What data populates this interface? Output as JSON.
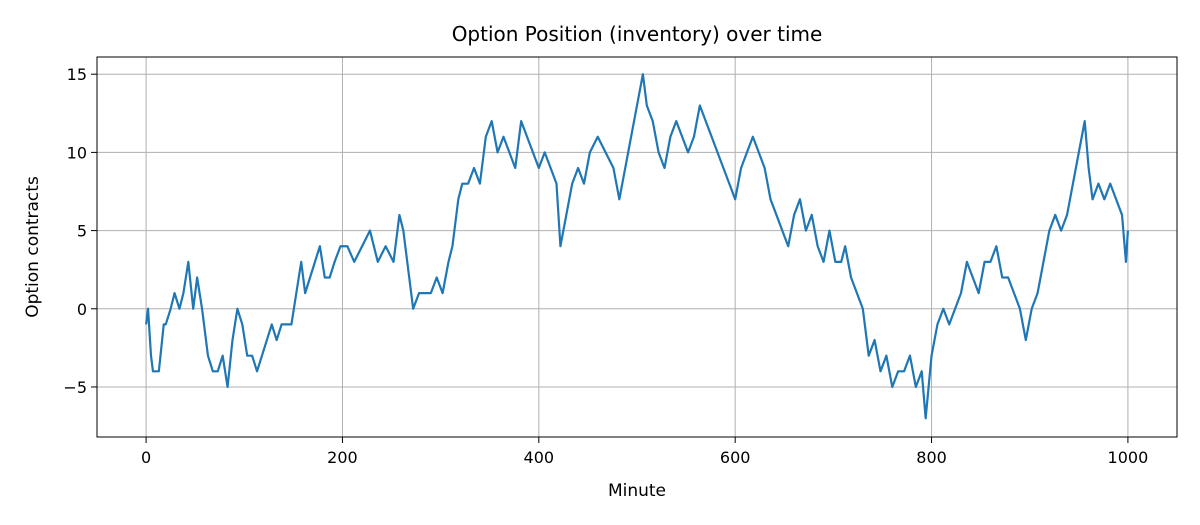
{
  "chart_data": {
    "type": "line",
    "title": "Option Position (inventory) over time",
    "xlabel": "Minute",
    "ylabel": "Option contracts",
    "xlim": [
      -50,
      1050
    ],
    "ylim": [
      -8.2,
      16.1
    ],
    "xticks": [
      0,
      200,
      400,
      600,
      800,
      1000
    ],
    "yticks": [
      -5,
      0,
      5,
      10,
      15
    ],
    "grid": true,
    "series_color": "#1f77b4",
    "series": [
      {
        "x": [
          0,
          2,
          5,
          7,
          9,
          13,
          18,
          20,
          25,
          29,
          34,
          38,
          43,
          48,
          52,
          57,
          63,
          68,
          73,
          78,
          83,
          88,
          93,
          98,
          103,
          108,
          113,
          118,
          123,
          128,
          133,
          138,
          143,
          148,
          153,
          158,
          162,
          167,
          172,
          177,
          182,
          187,
          192,
          198,
          205,
          212,
          220,
          228,
          236,
          244,
          252,
          258,
          262,
          266,
          272,
          278,
          284,
          290,
          296,
          302,
          308,
          312,
          318,
          322,
          328,
          334,
          340,
          346,
          352,
          358,
          364,
          370,
          376,
          382,
          388,
          394,
          400,
          406,
          412,
          418,
          422,
          428,
          434,
          440,
          446,
          452,
          460,
          468,
          476,
          482,
          488,
          494,
          500,
          506,
          510,
          516,
          522,
          528,
          534,
          540,
          546,
          552,
          558,
          564,
          570,
          576,
          582,
          588,
          594,
          600,
          606,
          612,
          618,
          624,
          630,
          636,
          642,
          648,
          654,
          660,
          666,
          672,
          678,
          684,
          690,
          696,
          702,
          708,
          712,
          718,
          724,
          730,
          736,
          742,
          748,
          754,
          760,
          766,
          772,
          778,
          784,
          790,
          794,
          800,
          806,
          812,
          818,
          824,
          830,
          836,
          842,
          848,
          854,
          860,
          866,
          872,
          878,
          884,
          890,
          896,
          902,
          908,
          914,
          920,
          926,
          932,
          938,
          944,
          950,
          956,
          960,
          964,
          970,
          976,
          982,
          988,
          994,
          998,
          1000
        ],
        "values": [
          -1,
          0,
          -3,
          -4,
          -4,
          -4,
          -1,
          -1,
          0,
          1,
          0,
          1,
          3,
          0,
          2,
          0,
          -3,
          -4,
          -4,
          -3,
          -5,
          -2,
          0,
          -1,
          -3,
          -3,
          -4,
          -3,
          -2,
          -1,
          -2,
          -1,
          -1,
          -1,
          1,
          3,
          1,
          2,
          3,
          4,
          2,
          2,
          3,
          4,
          4,
          3,
          4,
          5,
          3,
          4,
          3,
          6,
          5,
          3,
          0,
          1,
          1,
          1,
          2,
          1,
          3,
          4,
          7,
          8,
          8,
          9,
          8,
          11,
          12,
          10,
          11,
          10,
          9,
          12,
          11,
          10,
          9,
          10,
          9,
          8,
          4,
          6,
          8,
          9,
          8,
          10,
          11,
          10,
          9,
          7,
          9,
          11,
          13,
          15,
          13,
          12,
          10,
          9,
          11,
          12,
          11,
          10,
          11,
          13,
          12,
          11,
          10,
          9,
          8,
          7,
          9,
          10,
          11,
          10,
          9,
          7,
          6,
          5,
          4,
          6,
          7,
          5,
          6,
          4,
          3,
          5,
          3,
          3,
          4,
          2,
          1,
          0,
          -3,
          -2,
          -4,
          -3,
          -5,
          -4,
          -4,
          -3,
          -5,
          -4,
          -7,
          -3,
          -1,
          0,
          -1,
          0,
          1,
          3,
          2,
          1,
          3,
          3,
          4,
          2,
          2,
          1,
          0,
          -2,
          0,
          1,
          3,
          5,
          6,
          5,
          6,
          8,
          10,
          12,
          9,
          7,
          8,
          7,
          8,
          7,
          6,
          3,
          5
        ]
      }
    ]
  }
}
